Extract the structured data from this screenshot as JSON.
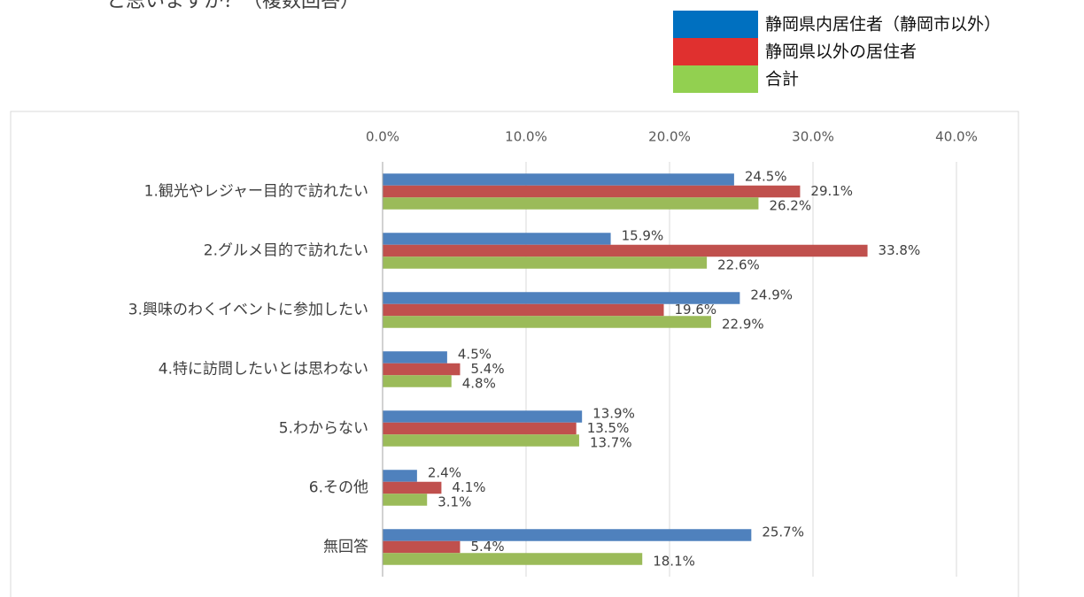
{
  "chart_data": {
    "type": "bar",
    "orientation": "horizontal",
    "title": "と思いますか？（複数回答）",
    "categories": [
      "1.観光やレジャー目的で訪れたい",
      "2.グルメ目的で訪れたい",
      "3.興味のわくイベントに参加したい",
      "4.特に訪問したいとは思わない",
      "5.わからない",
      "6.その他",
      "無回答"
    ],
    "series": [
      {
        "name": "静岡県内居住者（静岡市以外）",
        "color": "#4f81bd",
        "values": [
          24.5,
          15.9,
          24.9,
          4.5,
          13.9,
          2.4,
          25.7
        ],
        "value_labels": [
          "24.5%",
          "15.9%",
          "24.9%",
          "4.5%",
          "13.9%",
          "2.4%",
          "25.7%"
        ]
      },
      {
        "name": "静岡県以外の居住者",
        "color": "#c0504d",
        "values": [
          29.1,
          33.8,
          19.6,
          5.4,
          13.5,
          4.1,
          5.4
        ],
        "value_labels": [
          "29.1%",
          "33.8%",
          "19.6%",
          "5.4%",
          "13.5%",
          "4.1%",
          "5.4%"
        ]
      },
      {
        "name": "合計",
        "color": "#9bbb59",
        "values": [
          26.2,
          22.6,
          22.9,
          4.8,
          13.7,
          3.1,
          18.1
        ],
        "value_labels": [
          "26.2%",
          "22.6%",
          "22.9%",
          "4.8%",
          "13.7%",
          "3.1%",
          "18.1%"
        ]
      }
    ],
    "legend": {
      "position": "top-right",
      "colors": [
        "#0070c0",
        "#e0302f",
        "#92d050"
      ]
    },
    "xlim": [
      0,
      40
    ],
    "xticks": [
      {
        "value": 0,
        "label": "0.0%"
      },
      {
        "value": 10,
        "label": "10.0%"
      },
      {
        "value": 20,
        "label": "20.0%"
      },
      {
        "value": 30,
        "label": "30.0%"
      },
      {
        "value": 40,
        "label": "40.0%"
      }
    ],
    "grid": true
  }
}
